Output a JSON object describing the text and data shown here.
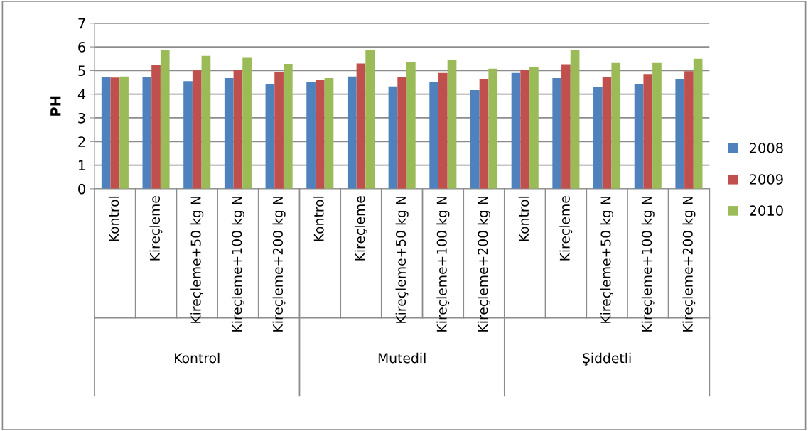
{
  "chart_data": {
    "type": "bar",
    "ylabel": "PH",
    "categories": [
      "Kontrol",
      "Kireçleme",
      "Kireçleme+50 kg N",
      "Kireçleme+100 kg N",
      "Kireçleme+200 kg N",
      "Kontrol",
      "Kireçleme",
      "Kireçleme+50 kg N",
      "Kireçleme+100 kg N",
      "Kireçleme+200 kg N",
      "Kontrol",
      "Kireçleme",
      "Kireçleme+50 kg N",
      "Kireçleme+100 kg N",
      "Kireçleme+200 kg N"
    ],
    "series": [
      {
        "name": "2008",
        "color": "#4f81bd",
        "values": [
          4.73,
          4.73,
          4.55,
          4.68,
          4.42,
          4.52,
          4.75,
          4.33,
          4.5,
          4.17,
          4.9,
          4.68,
          4.3,
          4.42,
          4.65
        ]
      },
      {
        "name": "2009",
        "color": "#c0504d",
        "values": [
          4.7,
          5.23,
          5.0,
          5.03,
          4.95,
          4.6,
          5.3,
          4.73,
          4.9,
          4.65,
          5.02,
          5.27,
          4.72,
          4.85,
          4.97
        ]
      },
      {
        "name": "2010",
        "color": "#9bbb59",
        "values": [
          4.75,
          5.85,
          5.62,
          5.57,
          5.28,
          4.68,
          5.88,
          5.35,
          5.45,
          5.08,
          5.15,
          5.88,
          5.32,
          5.32,
          5.5
        ]
      }
    ],
    "annotations": [
      "Kontrol",
      "Mutedil",
      "Şiddetli"
    ],
    "ylim": [
      0,
      7
    ],
    "yticks": [
      0,
      1,
      2,
      3,
      4,
      5,
      6,
      7
    ],
    "grid": "y",
    "legend": "right"
  }
}
